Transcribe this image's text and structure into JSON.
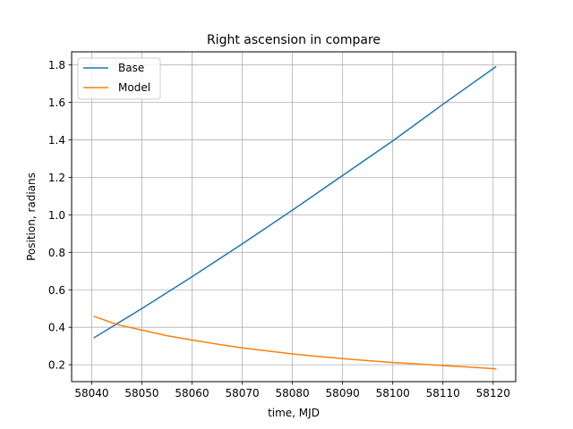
{
  "chart_data": {
    "type": "line",
    "title": "Right ascension in compare",
    "xlabel": "time, MJD",
    "ylabel": "Position, radians",
    "xlim": [
      58036,
      58124.5
    ],
    "ylim": [
      0.11,
      1.87
    ],
    "xticks": [
      58040,
      58050,
      58060,
      58070,
      58080,
      58090,
      58100,
      58110,
      58120
    ],
    "yticks": [
      0.2,
      0.4,
      0.6,
      0.8,
      1.0,
      1.2,
      1.4,
      1.6,
      1.8
    ],
    "ytick_labels": [
      "0.2",
      "0.4",
      "0.6",
      "0.8",
      "1.0",
      "1.2",
      "1.4",
      "1.6",
      "1.8"
    ],
    "grid": true,
    "legend_position": "upper-left",
    "series": [
      {
        "name": "Base",
        "color": "#1f77b4",
        "x": [
          58040.5,
          58050,
          58060,
          58070,
          58080,
          58090,
          58100,
          58110,
          58120.5
        ],
        "y": [
          0.345,
          0.5,
          0.67,
          0.845,
          1.025,
          1.21,
          1.395,
          1.59,
          1.79
        ]
      },
      {
        "name": "Model",
        "color": "#ff7f0e",
        "x": [
          58040.5,
          58045,
          58050,
          58055,
          58060,
          58065,
          58070,
          58075,
          58080,
          58085,
          58090,
          58095,
          58100,
          58105,
          58110,
          58115,
          58120.5
        ],
        "y": [
          0.458,
          0.415,
          0.385,
          0.355,
          0.332,
          0.31,
          0.29,
          0.274,
          0.258,
          0.245,
          0.233,
          0.222,
          0.212,
          0.204,
          0.196,
          0.188,
          0.178
        ]
      }
    ]
  }
}
